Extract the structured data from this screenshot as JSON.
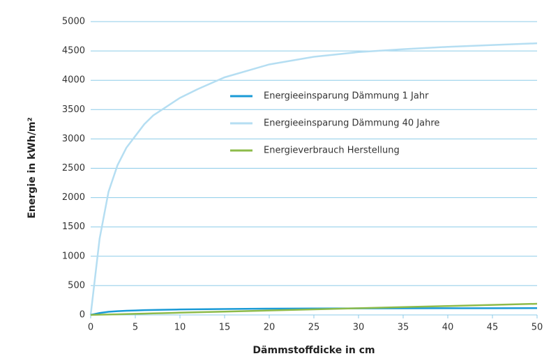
{
  "chart_data": {
    "type": "line",
    "xlabel": "Dämmstoffdicke in cm",
    "ylabel": "Energie in kWh/m²",
    "x": [
      0,
      1,
      2,
      3,
      4,
      5,
      6,
      7,
      8,
      10,
      12,
      15,
      20,
      25,
      30,
      35,
      40,
      45,
      50
    ],
    "series": [
      {
        "name": "Energieeinsparung Dämmung 1 Jahr",
        "color": "#1a9ad6",
        "values": [
          0,
          33,
          53,
          64,
          71,
          76,
          81,
          85,
          88,
          93,
          96,
          101,
          107,
          110,
          112,
          113,
          114,
          115,
          116
        ]
      },
      {
        "name": "Energieeinsparung Dämmung 40 Jahre",
        "color": "#b5def2",
        "values": [
          0,
          1300,
          2100,
          2550,
          2850,
          3050,
          3250,
          3400,
          3500,
          3700,
          3850,
          4050,
          4270,
          4400,
          4480,
          4530,
          4570,
          4600,
          4630
        ]
      },
      {
        "name": "Energieverbrauch Herstellung",
        "color": "#8dbb4a",
        "values": [
          0,
          4,
          8,
          11,
          15,
          19,
          23,
          27,
          30,
          38,
          46,
          57,
          76,
          95,
          114,
          133,
          152,
          171,
          190
        ]
      }
    ],
    "xlim": [
      0,
      50
    ],
    "xticks": [
      0,
      5,
      10,
      15,
      20,
      25,
      30,
      35,
      40,
      45,
      50
    ],
    "ylim": [
      0,
      5000
    ],
    "yticks": [
      0,
      500,
      1000,
      1500,
      2000,
      2500,
      3000,
      3500,
      4000,
      4500,
      5000
    ],
    "grid": true
  }
}
